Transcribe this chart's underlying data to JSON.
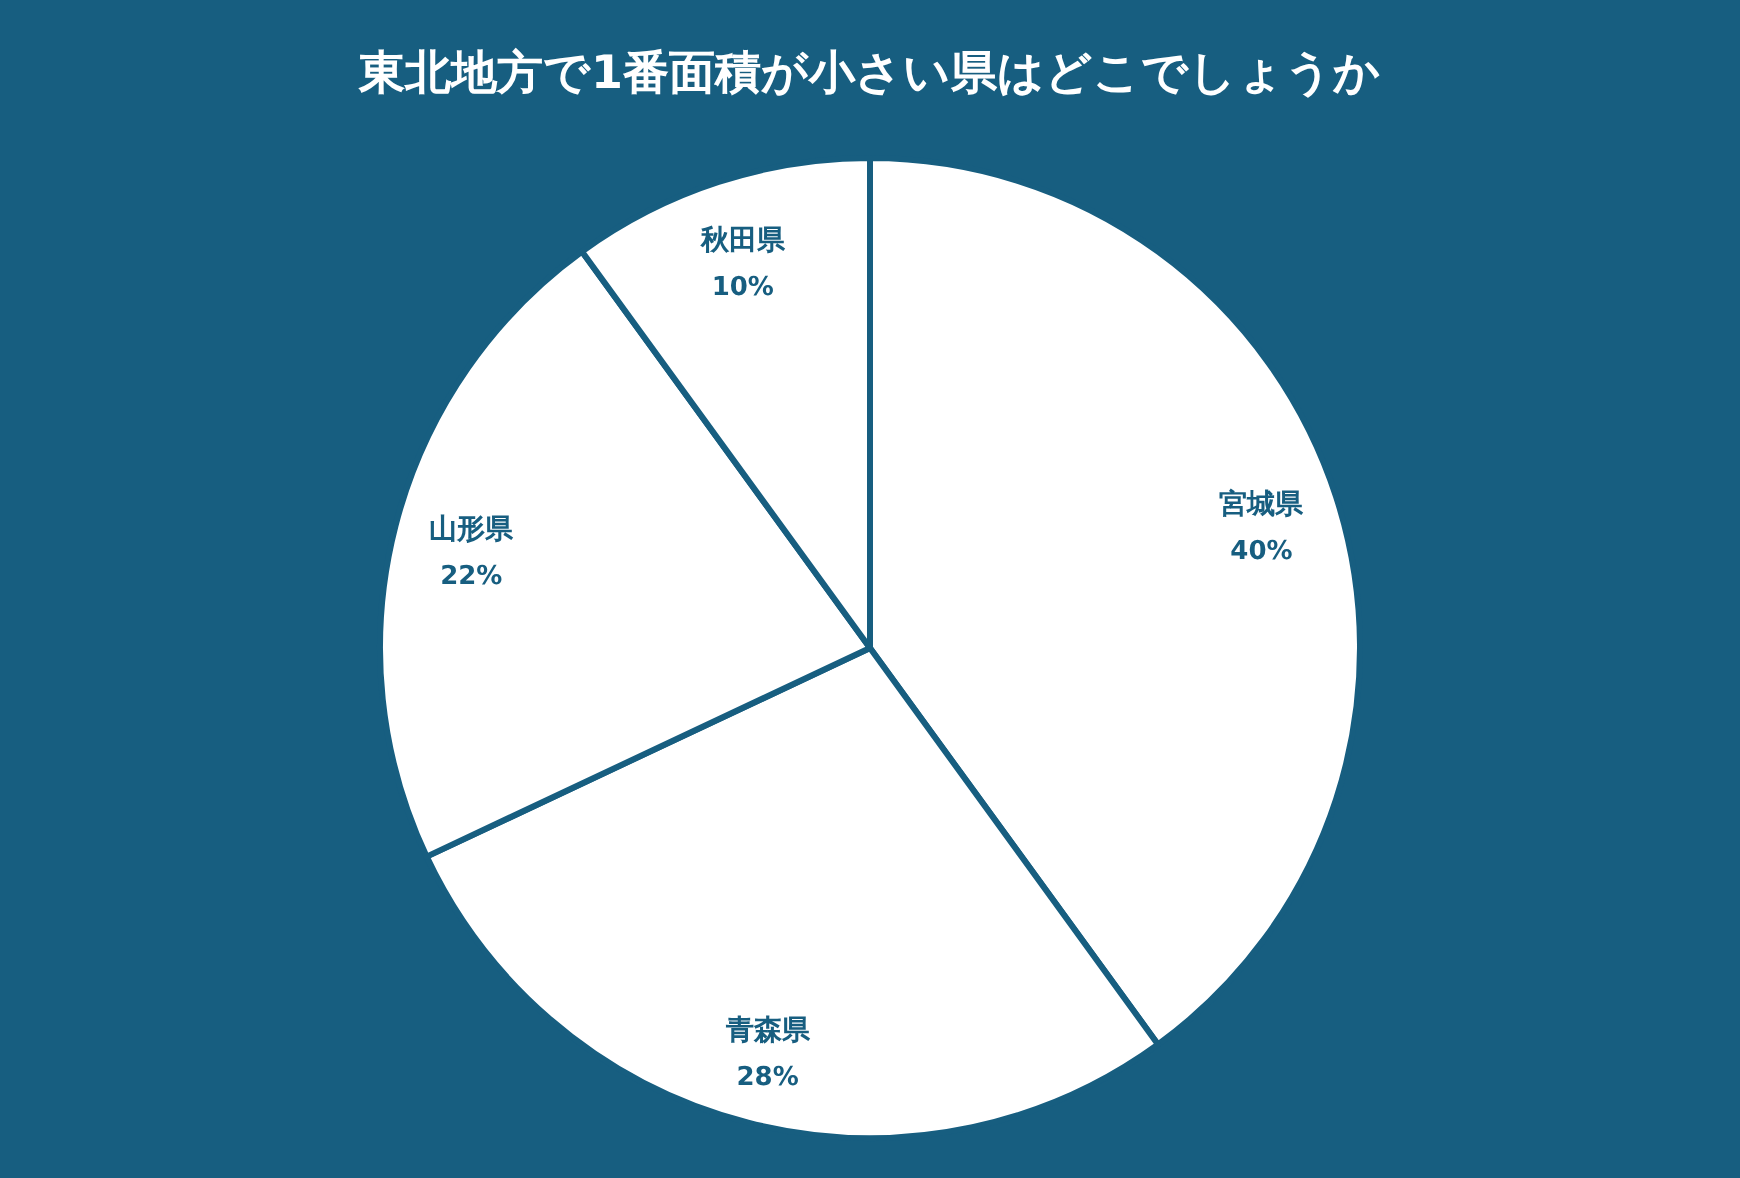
{
  "chart_data": {
    "type": "pie",
    "title": "東北地方で1番面積が小さい県はどこでしょうか",
    "categories": [
      "宮城県",
      "青森県",
      "山形県",
      "秋田県"
    ],
    "values": [
      40,
      28,
      22,
      10
    ],
    "colors": [
      "#ffffff",
      "#ffffff",
      "#ffffff",
      "#ffffff"
    ],
    "value_labels": [
      "40%",
      "28%",
      "22%",
      "10%"
    ]
  }
}
